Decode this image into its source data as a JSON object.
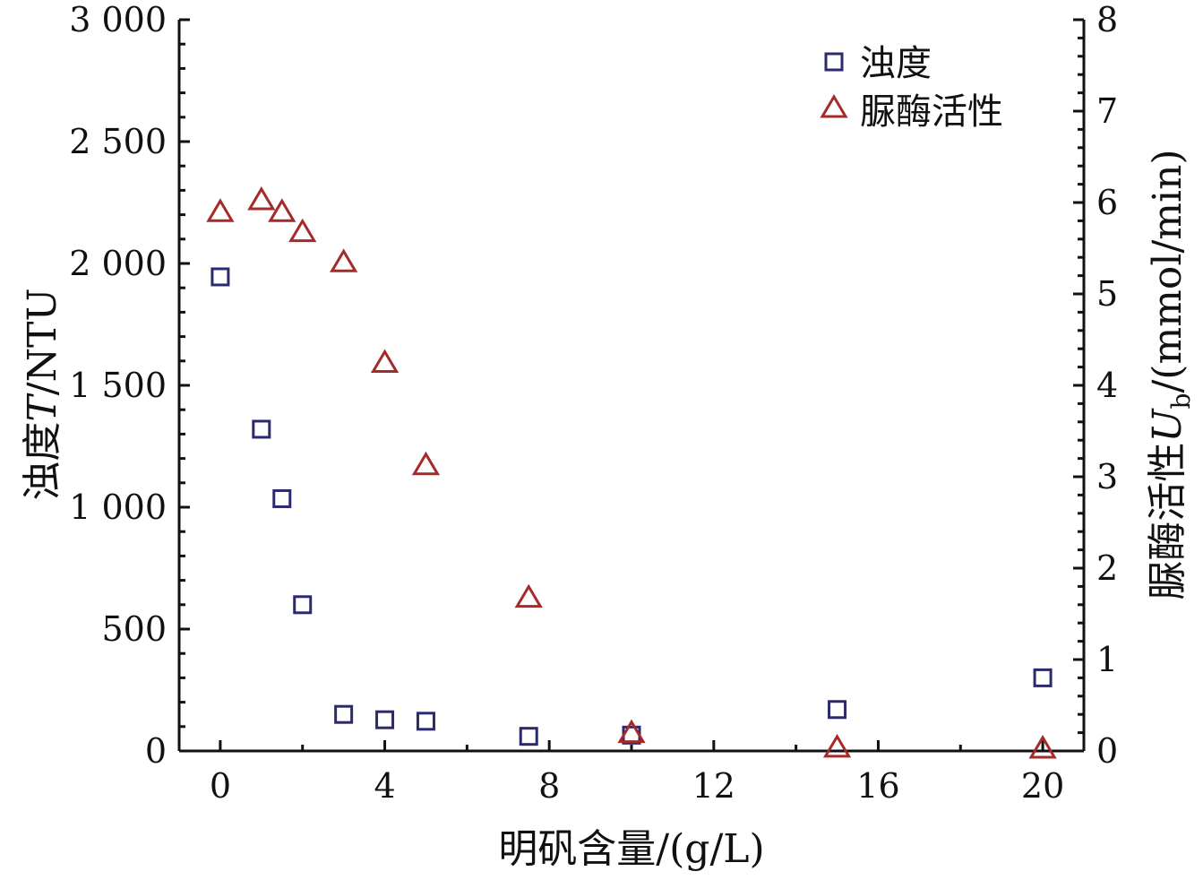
{
  "chart_data": {
    "type": "scatter",
    "xlabel": "明矾含量/(g/L)",
    "ylabel_left": {
      "pre": "浊度",
      "var": "T",
      "post": "/NTU"
    },
    "ylabel_right": {
      "pre": "脲酶活性",
      "var": "U",
      "sub": "b",
      "post": "/(mmol/min)"
    },
    "xlim": [
      -1,
      21
    ],
    "ylim_left": [
      0,
      3000
    ],
    "ylim_right": [
      0,
      8
    ],
    "x_ticks": [
      0,
      4,
      8,
      12,
      16,
      20
    ],
    "x_tick_labels": [
      "0",
      "4",
      "8",
      "12",
      "16",
      "20"
    ],
    "y_left_ticks": [
      0,
      500,
      1000,
      1500,
      2000,
      2500,
      3000
    ],
    "y_left_tick_labels": [
      "0",
      "500",
      "1 000",
      "1 500",
      "2 000",
      "2 500",
      "3 000"
    ],
    "y_right_ticks": [
      0,
      1,
      2,
      3,
      4,
      5,
      6,
      7,
      8
    ],
    "y_right_tick_labels": [
      "0",
      "1",
      "2",
      "3",
      "4",
      "5",
      "6",
      "7",
      "8"
    ],
    "legend_position": "top-right",
    "series": [
      {
        "name": "浊度",
        "axis": "left",
        "marker": "square",
        "color": "#2b2a6e",
        "x": [
          0,
          1,
          1.5,
          2,
          3,
          4,
          5,
          7.5,
          10,
          15,
          20
        ],
        "y": [
          1945,
          1320,
          1035,
          600,
          150,
          128,
          122,
          60,
          65,
          170,
          300
        ]
      },
      {
        "name": "脲酶活性",
        "axis": "right",
        "marker": "triangle",
        "color": "#a52a2a",
        "x": [
          0,
          1,
          1.5,
          2,
          3,
          4,
          5,
          7.5,
          10,
          15,
          20
        ],
        "y": [
          5.9,
          6.03,
          5.9,
          5.68,
          5.35,
          4.25,
          3.13,
          1.68,
          0.2,
          0.04,
          0.03
        ]
      }
    ]
  }
}
